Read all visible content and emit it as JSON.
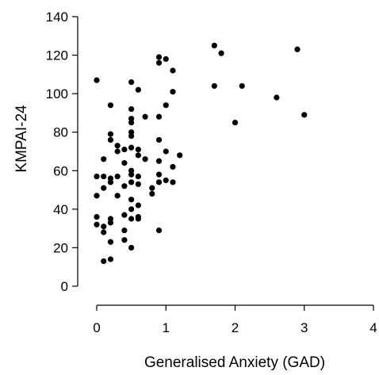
{
  "chart_data": {
    "type": "scatter",
    "title": "",
    "xlabel": "Generalised Anxiety (GAD)",
    "ylabel": "KMPAI-24",
    "xlim": [
      0,
      4
    ],
    "ylim": [
      0,
      140
    ],
    "x_ticks": [
      0,
      1,
      2,
      3,
      4
    ],
    "y_ticks": [
      0,
      20,
      40,
      60,
      80,
      100,
      120,
      140
    ],
    "grid": false,
    "legend": "none",
    "point_color": "#000000",
    "points": [
      {
        "x": 0.0,
        "y": 107
      },
      {
        "x": 0.0,
        "y": 57
      },
      {
        "x": 0.0,
        "y": 47
      },
      {
        "x": 0.0,
        "y": 36
      },
      {
        "x": 0.0,
        "y": 32
      },
      {
        "x": 0.1,
        "y": 66
      },
      {
        "x": 0.1,
        "y": 57
      },
      {
        "x": 0.1,
        "y": 51
      },
      {
        "x": 0.1,
        "y": 31
      },
      {
        "x": 0.1,
        "y": 28
      },
      {
        "x": 0.1,
        "y": 13
      },
      {
        "x": 0.2,
        "y": 94
      },
      {
        "x": 0.2,
        "y": 79
      },
      {
        "x": 0.2,
        "y": 76
      },
      {
        "x": 0.2,
        "y": 56
      },
      {
        "x": 0.2,
        "y": 54
      },
      {
        "x": 0.2,
        "y": 35
      },
      {
        "x": 0.2,
        "y": 33
      },
      {
        "x": 0.2,
        "y": 23
      },
      {
        "x": 0.2,
        "y": 14
      },
      {
        "x": 0.3,
        "y": 73
      },
      {
        "x": 0.3,
        "y": 70
      },
      {
        "x": 0.3,
        "y": 57
      },
      {
        "x": 0.3,
        "y": 47
      },
      {
        "x": 0.4,
        "y": 71
      },
      {
        "x": 0.4,
        "y": 64
      },
      {
        "x": 0.4,
        "y": 52
      },
      {
        "x": 0.4,
        "y": 37
      },
      {
        "x": 0.4,
        "y": 29
      },
      {
        "x": 0.4,
        "y": 24
      },
      {
        "x": 0.5,
        "y": 106
      },
      {
        "x": 0.5,
        "y": 92
      },
      {
        "x": 0.5,
        "y": 87
      },
      {
        "x": 0.5,
        "y": 85
      },
      {
        "x": 0.5,
        "y": 80
      },
      {
        "x": 0.5,
        "y": 78
      },
      {
        "x": 0.5,
        "y": 72
      },
      {
        "x": 0.5,
        "y": 60
      },
      {
        "x": 0.5,
        "y": 58
      },
      {
        "x": 0.5,
        "y": 54
      },
      {
        "x": 0.5,
        "y": 45
      },
      {
        "x": 0.5,
        "y": 40
      },
      {
        "x": 0.5,
        "y": 35
      },
      {
        "x": 0.5,
        "y": 20
      },
      {
        "x": 0.6,
        "y": 102
      },
      {
        "x": 0.6,
        "y": 71
      },
      {
        "x": 0.6,
        "y": 68
      },
      {
        "x": 0.6,
        "y": 57
      },
      {
        "x": 0.6,
        "y": 53
      },
      {
        "x": 0.6,
        "y": 42
      },
      {
        "x": 0.6,
        "y": 36
      },
      {
        "x": 0.6,
        "y": 35
      },
      {
        "x": 0.7,
        "y": 88
      },
      {
        "x": 0.7,
        "y": 66
      },
      {
        "x": 0.8,
        "y": 51
      },
      {
        "x": 0.8,
        "y": 48
      },
      {
        "x": 0.9,
        "y": 119
      },
      {
        "x": 0.9,
        "y": 116
      },
      {
        "x": 0.9,
        "y": 88
      },
      {
        "x": 0.9,
        "y": 76
      },
      {
        "x": 0.9,
        "y": 65
      },
      {
        "x": 0.9,
        "y": 58
      },
      {
        "x": 0.9,
        "y": 54
      },
      {
        "x": 0.9,
        "y": 29
      },
      {
        "x": 1.0,
        "y": 118
      },
      {
        "x": 1.0,
        "y": 94
      },
      {
        "x": 1.0,
        "y": 70
      },
      {
        "x": 1.0,
        "y": 55
      },
      {
        "x": 1.1,
        "y": 112
      },
      {
        "x": 1.1,
        "y": 101
      },
      {
        "x": 1.1,
        "y": 62
      },
      {
        "x": 1.1,
        "y": 54
      },
      {
        "x": 1.2,
        "y": 68
      },
      {
        "x": 1.7,
        "y": 125
      },
      {
        "x": 1.7,
        "y": 104
      },
      {
        "x": 1.8,
        "y": 121
      },
      {
        "x": 2.0,
        "y": 85
      },
      {
        "x": 2.1,
        "y": 104
      },
      {
        "x": 2.6,
        "y": 98
      },
      {
        "x": 2.9,
        "y": 123
      },
      {
        "x": 3.0,
        "y": 89
      }
    ]
  }
}
